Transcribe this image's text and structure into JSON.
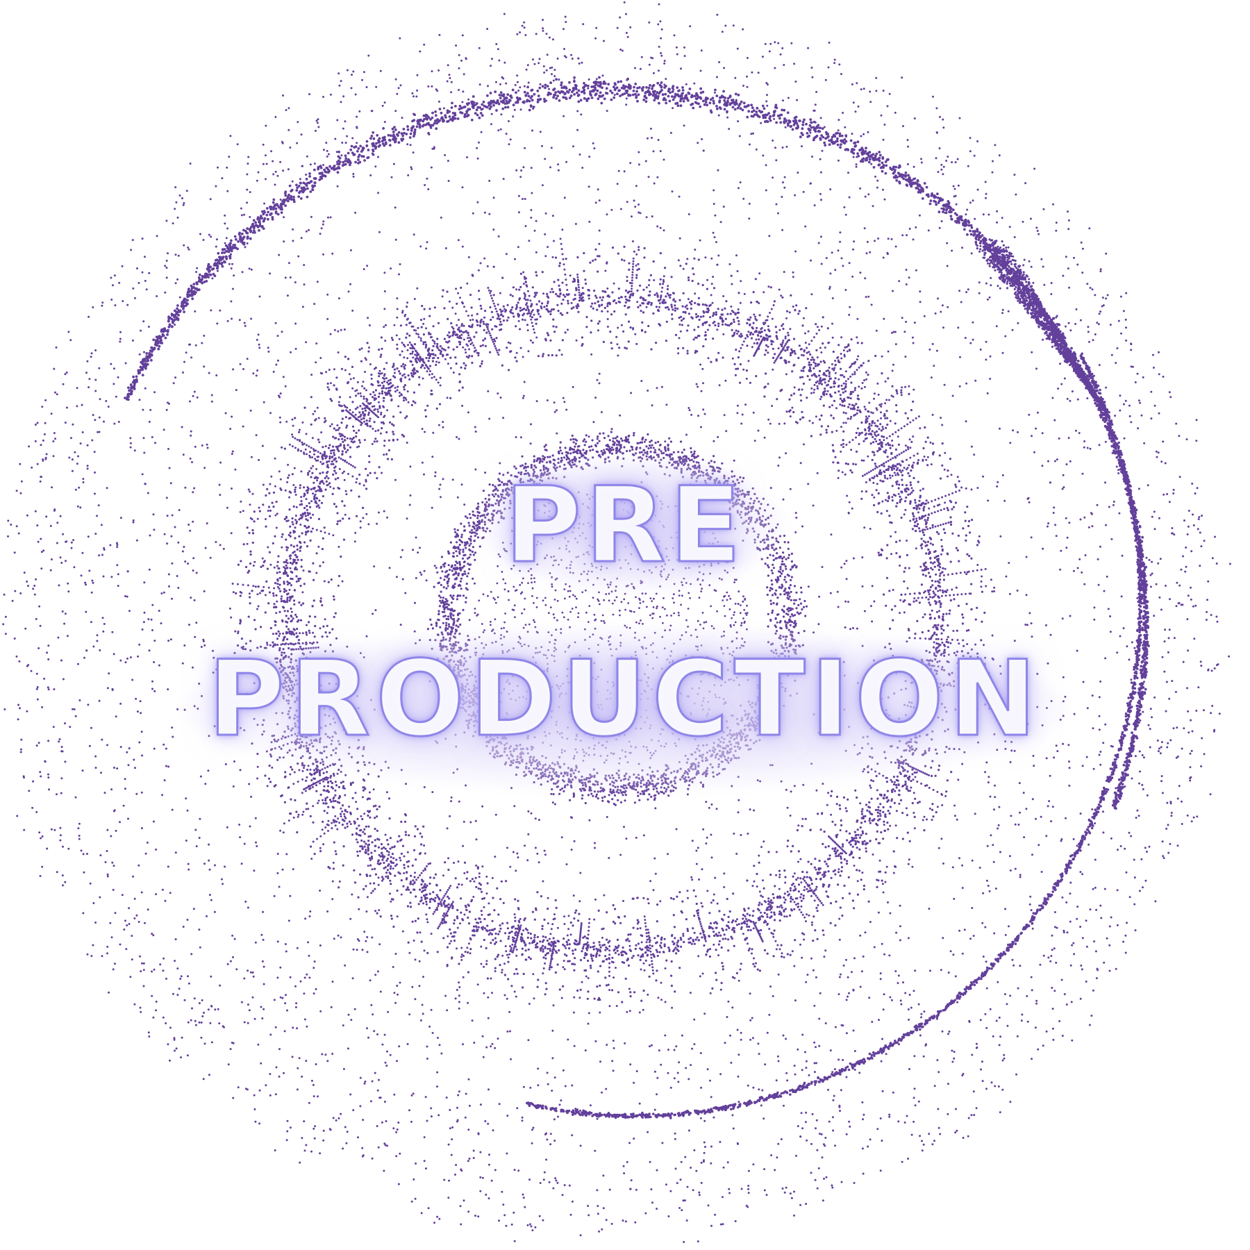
{
  "title": {
    "line1": "PRE",
    "line2": "PRODUCTION"
  },
  "colors": {
    "particle": "#63409b",
    "title_fill": "#ffffff",
    "title_outline": "#8f86e8",
    "glow": "#d6cef6",
    "background": "#ffffff"
  }
}
